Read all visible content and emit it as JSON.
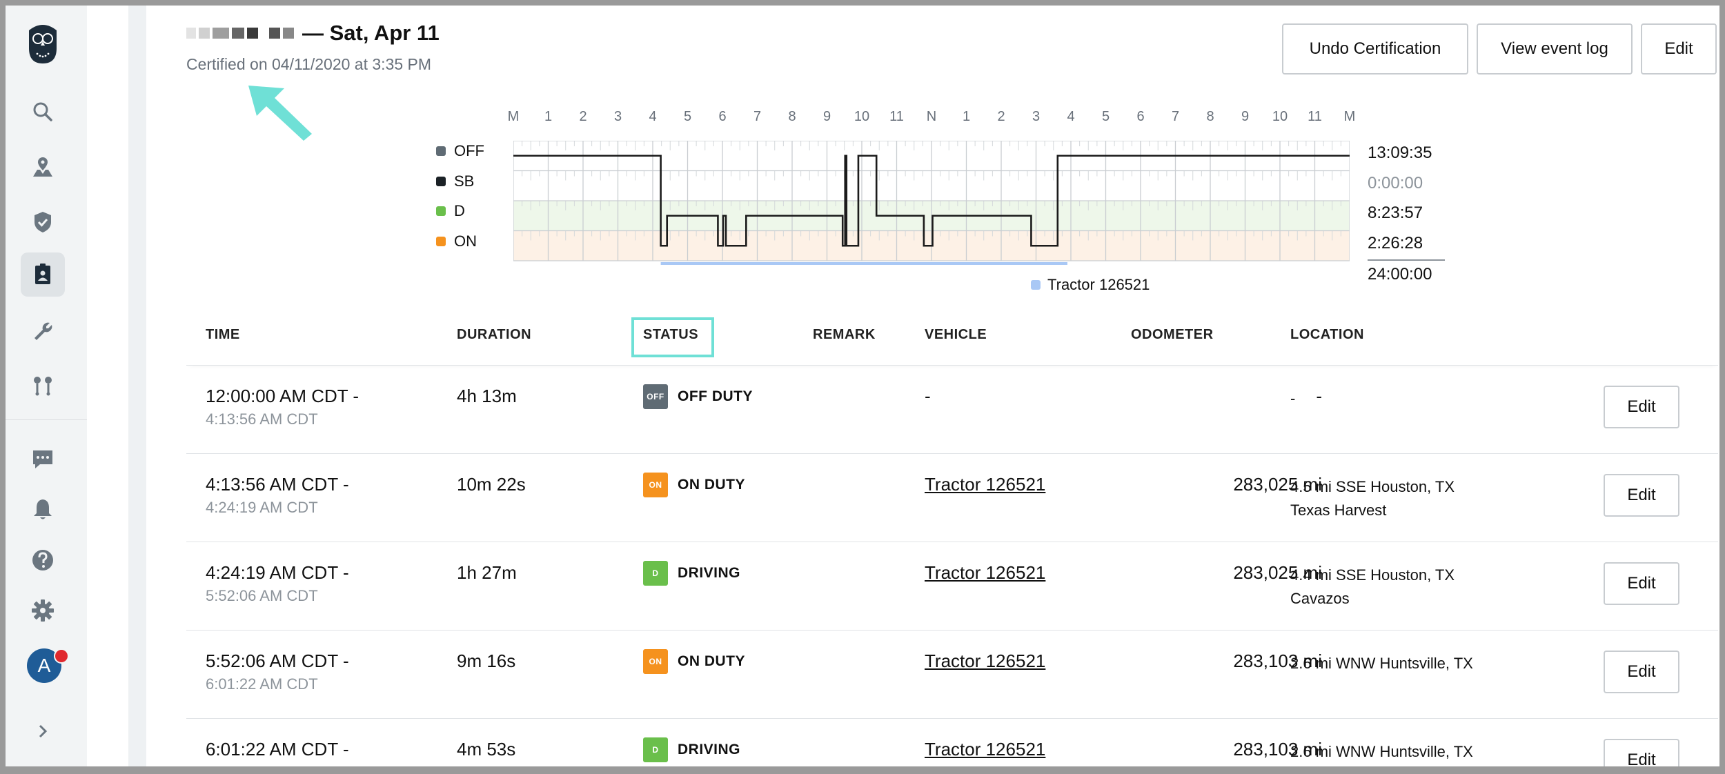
{
  "header": {
    "title": "— Sat, Apr 11",
    "certified": "Certified on 04/11/2020 at 3:35 PM",
    "buttons": {
      "undo": "Undo Certification",
      "event_log": "View event log",
      "edit": "Edit"
    }
  },
  "chart": {
    "hours": [
      "M",
      "1",
      "2",
      "3",
      "4",
      "5",
      "6",
      "7",
      "8",
      "9",
      "10",
      "11",
      "N",
      "1",
      "2",
      "3",
      "4",
      "5",
      "6",
      "7",
      "8",
      "9",
      "10",
      "11",
      "M"
    ],
    "statuses": [
      {
        "label": "OFF",
        "color": "#5f6b74",
        "total": "13:09:35"
      },
      {
        "label": "SB",
        "color": "#1b2126",
        "total": "0:00:00"
      },
      {
        "label": "D",
        "color": "#6abf4b",
        "total": "8:23:57"
      },
      {
        "label": "ON",
        "color": "#f5921e",
        "total": "2:26:28"
      }
    ],
    "grand_total": "24:00:00",
    "legend": "Tractor 126521"
  },
  "table": {
    "headers": [
      "TIME",
      "DURATION",
      "STATUS",
      "REMARK",
      "VEHICLE",
      "ODOMETER",
      "LOCATION"
    ],
    "rows": [
      {
        "start": "12:00:00 AM CDT -",
        "end": "4:13:56 AM CDT",
        "duration": "4h 13m",
        "badge": "OFF",
        "status": "OFF DUTY",
        "vehicle": "-",
        "odometer": "-",
        "loc1": "-",
        "loc2": "",
        "edit": "Edit"
      },
      {
        "start": "4:13:56 AM CDT -",
        "end": "4:24:19 AM CDT",
        "duration": "10m 22s",
        "badge": "ON",
        "status": "ON DUTY",
        "vehicle": "Tractor 126521",
        "odometer": "283,025 mi",
        "loc1": "4.5 mi SSE Houston, TX",
        "loc2": "Texas Harvest",
        "edit": "Edit"
      },
      {
        "start": "4:24:19 AM CDT -",
        "end": "5:52:06 AM CDT",
        "duration": "1h 27m",
        "badge": "D",
        "status": "DRIVING",
        "vehicle": "Tractor 126521",
        "odometer": "283,025 mi",
        "loc1": "4.4 mi SSE Houston, TX",
        "loc2": "Cavazos",
        "edit": "Edit"
      },
      {
        "start": "5:52:06 AM CDT -",
        "end": "6:01:22 AM CDT",
        "duration": "9m 16s",
        "badge": "ON",
        "status": "ON DUTY",
        "vehicle": "Tractor 126521",
        "odometer": "283,103 mi",
        "loc1": "2.6 mi WNW Huntsville, TX",
        "loc2": "",
        "edit": "Edit"
      },
      {
        "start": "6:01:22 AM CDT -",
        "end": "",
        "duration": "4m 53s",
        "badge": "D",
        "status": "DRIVING",
        "vehicle": "Tractor 126521",
        "odometer": "283,103 mi",
        "loc1": "2.6 mi WNW Huntsville, TX",
        "loc2": "",
        "edit": "Edit"
      }
    ]
  },
  "sidebar": {
    "icons": [
      "search-icon",
      "map-pin-icon",
      "shield-check-icon",
      "driver-badge-icon",
      "wrench-icon",
      "route-icon",
      "chat-icon",
      "bell-icon",
      "help-icon",
      "gear-icon",
      "chevron-right-icon"
    ],
    "avatar": "A"
  }
}
